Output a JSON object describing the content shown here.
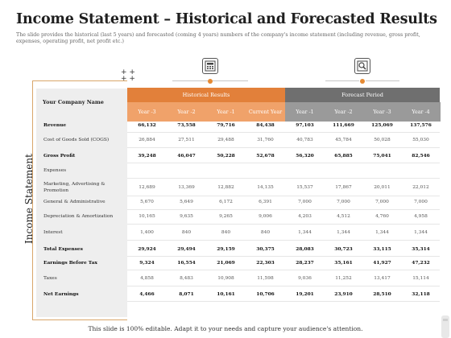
{
  "header": {
    "title": "Income Statement – Historical and Forecasted Results",
    "subtitle": "The slide provides the historical (last 5 years) and forecasted (coming 4 years) numbers of the company's income statement (including revenue, gross profit, expenses, operating profit, net profit etc.)"
  },
  "side_label": "Income Statement",
  "table": {
    "company_label": "Your Company Name",
    "historical_label": "Historical Results",
    "forecast_label": "Forecast Period",
    "years": [
      "Year -3",
      "Year -2",
      "Year -1",
      "Current Year",
      "Year -1",
      "Year -2",
      "Year -3",
      "Year -4"
    ],
    "rows": [
      {
        "label": "Revenue",
        "bold": true,
        "values": [
          "66,132",
          "73,558",
          "79,716",
          "84,438",
          "97,103",
          "111,669",
          "125,069",
          "137,576"
        ]
      },
      {
        "label": "Cost of Goods Sold (COGS)",
        "bold": false,
        "values": [
          "26,884",
          "27,511",
          "29,488",
          "31,760",
          "40,783",
          "45,784",
          "50,028",
          "55,030"
        ]
      },
      {
        "label": "Gross Profit",
        "bold": true,
        "values": [
          "39,248",
          "46,047",
          "50,228",
          "52,678",
          "56,320",
          "65,885",
          "75,041",
          "82,546"
        ]
      },
      {
        "label": "Expenses",
        "bold": false,
        "values": [
          "",
          "",
          "",
          "",
          "",
          "",
          "",
          ""
        ]
      },
      {
        "label": "Marketing, Advertising & Promotion",
        "bold": false,
        "values": [
          "12,689",
          "13,369",
          "12,882",
          "14,135",
          "15,537",
          "17,867",
          "20,011",
          "22,012"
        ]
      },
      {
        "label": "General & Administrative",
        "bold": false,
        "values": [
          "5,670",
          "5,649",
          "6,172",
          "6,391",
          "7,000",
          "7,000",
          "7,000",
          "7,000"
        ]
      },
      {
        "label": "Depreciation & Amortization",
        "bold": false,
        "values": [
          "10,165",
          "9,635",
          "9,265",
          "9,006",
          "4,203",
          "4,512",
          "4,760",
          "4,958"
        ]
      },
      {
        "label": "Interest",
        "bold": false,
        "values": [
          "1,400",
          "840",
          "840",
          "840",
          "1,344",
          "1,344",
          "1,344",
          "1,344"
        ]
      },
      {
        "label": "Total Expenses",
        "bold": true,
        "values": [
          "29,924",
          "29,494",
          "29,159",
          "30,375",
          "28,083",
          "30,723",
          "33,115",
          "35,314"
        ]
      },
      {
        "label": "Earnings Before Tax",
        "bold": true,
        "values": [
          "9,324",
          "16,554",
          "21,069",
          "22,303",
          "28,237",
          "35,161",
          "41,927",
          "47,232"
        ]
      },
      {
        "label": "Taxes",
        "bold": false,
        "values": [
          "4,858",
          "8,483",
          "10,908",
          "11,598",
          "9,036",
          "11,252",
          "13,417",
          "15,114"
        ]
      },
      {
        "label": "Net Earnings",
        "bold": true,
        "values": [
          "4,466",
          "8,071",
          "10,161",
          "10,706",
          "19,201",
          "23,910",
          "28,510",
          "32,118"
        ]
      }
    ]
  },
  "footer": "This slide is 100% editable. Adapt it to your needs and capture your audience's attention.",
  "colors": {
    "historical_header": "#e2803a",
    "historical_year": "#f0a26a",
    "forecast_header": "#6f6f6f",
    "forecast_year": "#9a9a9a",
    "accent_dot": "#e58a33"
  },
  "icons": [
    "calculator-icon",
    "magnifier-chart-icon"
  ]
}
